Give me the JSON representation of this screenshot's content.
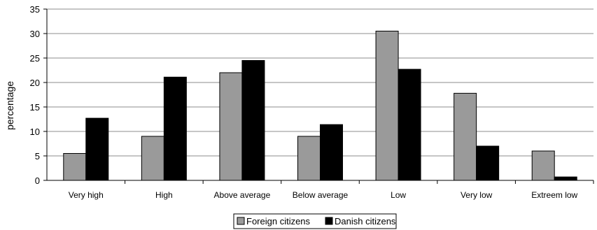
{
  "chart_data": {
    "type": "bar",
    "title": "",
    "xlabel": "",
    "ylabel": "percentage",
    "ylim": [
      0,
      35
    ],
    "yticks": [
      0,
      5,
      10,
      15,
      20,
      25,
      30,
      35
    ],
    "grid": true,
    "legend_position": "bottom",
    "categories": [
      "Very high",
      "High",
      "Above average",
      "Below average",
      "Low",
      "Very low",
      "Extreem low"
    ],
    "series": [
      {
        "name": "Foreign citizens",
        "color": "#9a9a9a",
        "values": [
          5.5,
          9.0,
          22.0,
          9.0,
          30.5,
          17.8,
          6.0
        ]
      },
      {
        "name": "Danish citizens",
        "color": "#000000",
        "values": [
          12.7,
          21.1,
          24.5,
          11.4,
          22.7,
          7.0,
          0.7
        ]
      }
    ]
  }
}
